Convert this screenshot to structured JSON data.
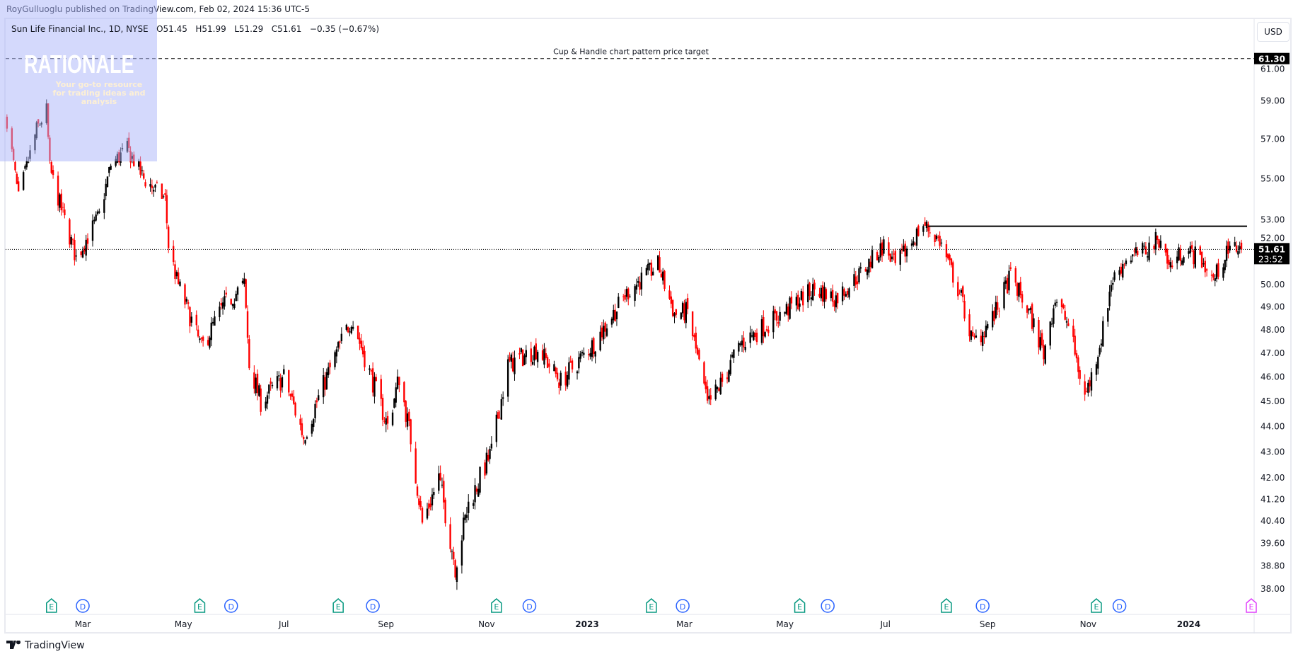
{
  "header": {
    "published": "RoyGulluoglu published on TradingView.com, Feb 02, 2024 15:36 UTC-5"
  },
  "legend": {
    "symbol": "Sun Life Financial Inc., 1D, NYSE",
    "open": "O51.45",
    "high": "H51.99",
    "low": "L51.29",
    "close": "C51.61",
    "change": "−0.35 (−0.67%)"
  },
  "currency_button": "USD",
  "footer_logo": "TradingView",
  "watermark": {
    "title": "RATIONALE",
    "subtitle": "Your go-to resource for trading ideas and analysis"
  },
  "chart_data": {
    "type": "candlestick",
    "scale": "log",
    "ylim": [
      37.6,
      62.2
    ],
    "price_ticks": [
      "61.00",
      "59.00",
      "57.00",
      "55.00",
      "53.00",
      "52.00",
      "50.00",
      "49.00",
      "48.00",
      "47.00",
      "46.00",
      "45.00",
      "44.00",
      "43.00",
      "42.00",
      "41.20",
      "40.40",
      "39.60",
      "38.80",
      "38.00"
    ],
    "time_ticks": [
      {
        "label": "Mar",
        "date": "2022-03-01"
      },
      {
        "label": "May",
        "date": "2022-05-01"
      },
      {
        "label": "Jul",
        "date": "2022-07-01"
      },
      {
        "label": "Sep",
        "date": "2022-09-01"
      },
      {
        "label": "Nov",
        "date": "2022-11-01"
      },
      {
        "label": "2023",
        "date": "2023-01-01"
      },
      {
        "label": "Mar",
        "date": "2023-03-01"
      },
      {
        "label": "May",
        "date": "2023-05-01"
      },
      {
        "label": "Jul",
        "date": "2023-07-01"
      },
      {
        "label": "Sep",
        "date": "2023-09-01"
      },
      {
        "label": "Nov",
        "date": "2023-11-01"
      },
      {
        "label": "2024",
        "date": "2024-01-01"
      }
    ],
    "approx_closes": [
      [
        "2022-01-14",
        58.0
      ],
      [
        "2022-01-21",
        54.0
      ],
      [
        "2022-02-01",
        57.5
      ],
      [
        "2022-02-07",
        58.5
      ],
      [
        "2022-02-09",
        55.5
      ],
      [
        "2022-02-16",
        53.5
      ],
      [
        "2022-02-25",
        51.2
      ],
      [
        "2022-03-11",
        53.2
      ],
      [
        "2022-03-18",
        55.7
      ],
      [
        "2022-03-28",
        56.5
      ],
      [
        "2022-04-07",
        55.0
      ],
      [
        "2022-04-20",
        54.0
      ],
      [
        "2022-04-22",
        51.8
      ],
      [
        "2022-04-27",
        50.2
      ],
      [
        "2022-05-12",
        47.2
      ],
      [
        "2022-05-25",
        49.0
      ],
      [
        "2022-06-07",
        50.0
      ],
      [
        "2022-06-10",
        46.5
      ],
      [
        "2022-06-17",
        45.0
      ],
      [
        "2022-07-01",
        46.0
      ],
      [
        "2022-07-13",
        43.6
      ],
      [
        "2022-07-27",
        46.0
      ],
      [
        "2022-08-11",
        48.5
      ],
      [
        "2022-08-23",
        46.0
      ],
      [
        "2022-09-02",
        44.0
      ],
      [
        "2022-09-09",
        46.0
      ],
      [
        "2022-09-16",
        43.5
      ],
      [
        "2022-09-23",
        40.3
      ],
      [
        "2022-10-03",
        42.0
      ],
      [
        "2022-10-13",
        38.8
      ],
      [
        "2022-10-21",
        41.0
      ],
      [
        "2022-11-04",
        43.0
      ],
      [
        "2022-11-14",
        46.5
      ],
      [
        "2022-12-02",
        47.2
      ],
      [
        "2022-12-16",
        45.8
      ],
      [
        "2023-01-06",
        47.5
      ],
      [
        "2023-01-26",
        49.7
      ],
      [
        "2023-02-13",
        50.9
      ],
      [
        "2023-02-23",
        48.7
      ],
      [
        "2023-03-03",
        48.8
      ],
      [
        "2023-03-15",
        44.8
      ],
      [
        "2023-03-24",
        45.8
      ],
      [
        "2023-04-04",
        47.4
      ],
      [
        "2023-04-27",
        48.6
      ],
      [
        "2023-05-19",
        49.8
      ],
      [
        "2023-06-01",
        49.4
      ],
      [
        "2023-06-16",
        50.5
      ],
      [
        "2023-06-30",
        51.8
      ],
      [
        "2023-07-07",
        50.8
      ],
      [
        "2023-07-24",
        52.8
      ],
      [
        "2023-08-03",
        52.0
      ],
      [
        "2023-08-16",
        49.4
      ],
      [
        "2023-08-23",
        47.4
      ],
      [
        "2023-09-05",
        48.6
      ],
      [
        "2023-09-15",
        50.4
      ],
      [
        "2023-09-27",
        48.6
      ],
      [
        "2023-10-05",
        47.0
      ],
      [
        "2023-10-12",
        49.4
      ],
      [
        "2023-10-20",
        48.2
      ],
      [
        "2023-10-30",
        45.2
      ],
      [
        "2023-11-03",
        46.0
      ],
      [
        "2023-11-10",
        48.0
      ],
      [
        "2023-11-15",
        50.1
      ],
      [
        "2023-11-24",
        51.2
      ],
      [
        "2023-12-05",
        51.5
      ],
      [
        "2023-12-15",
        52.2
      ],
      [
        "2023-12-20",
        50.8
      ],
      [
        "2023-12-29",
        51.6
      ],
      [
        "2024-01-08",
        51.2
      ],
      [
        "2024-01-16",
        50.2
      ],
      [
        "2024-01-23",
        51.3
      ],
      [
        "2024-01-31",
        51.8
      ],
      [
        "2024-02-02",
        51.61
      ]
    ],
    "last_price": {
      "value": 51.61,
      "label": "51.61",
      "countdown": "23:52"
    },
    "target_line": {
      "value": 61.3,
      "label": "61.30",
      "text": "Cup & Handle chart pattern price target"
    },
    "resistance_line": {
      "value": 52.7,
      "from": "2023-07-27",
      "to": "2024-02-02"
    },
    "events": [
      {
        "type": "E",
        "date": "2022-02-10"
      },
      {
        "type": "D",
        "date": "2022-03-01"
      },
      {
        "type": "E",
        "date": "2022-05-11"
      },
      {
        "type": "D",
        "date": "2022-05-30"
      },
      {
        "type": "E",
        "date": "2022-08-03"
      },
      {
        "type": "D",
        "date": "2022-08-24"
      },
      {
        "type": "E",
        "date": "2022-11-07"
      },
      {
        "type": "D",
        "date": "2022-11-27"
      },
      {
        "type": "E",
        "date": "2023-02-09"
      },
      {
        "type": "D",
        "date": "2023-02-28"
      },
      {
        "type": "E",
        "date": "2023-05-10"
      },
      {
        "type": "D",
        "date": "2023-05-27"
      },
      {
        "type": "E",
        "date": "2023-08-07"
      },
      {
        "type": "D",
        "date": "2023-08-29"
      },
      {
        "type": "E",
        "date": "2023-11-06"
      },
      {
        "type": "D",
        "date": "2023-11-20"
      },
      {
        "type": "E",
        "date": "2024-02-08",
        "upcoming": true
      }
    ],
    "colors": {
      "up": "#000000",
      "down": "#ff0000",
      "earnings": "#089981",
      "dividend": "#2962ff",
      "upcoming": "#e040fb"
    },
    "grid": false
  }
}
